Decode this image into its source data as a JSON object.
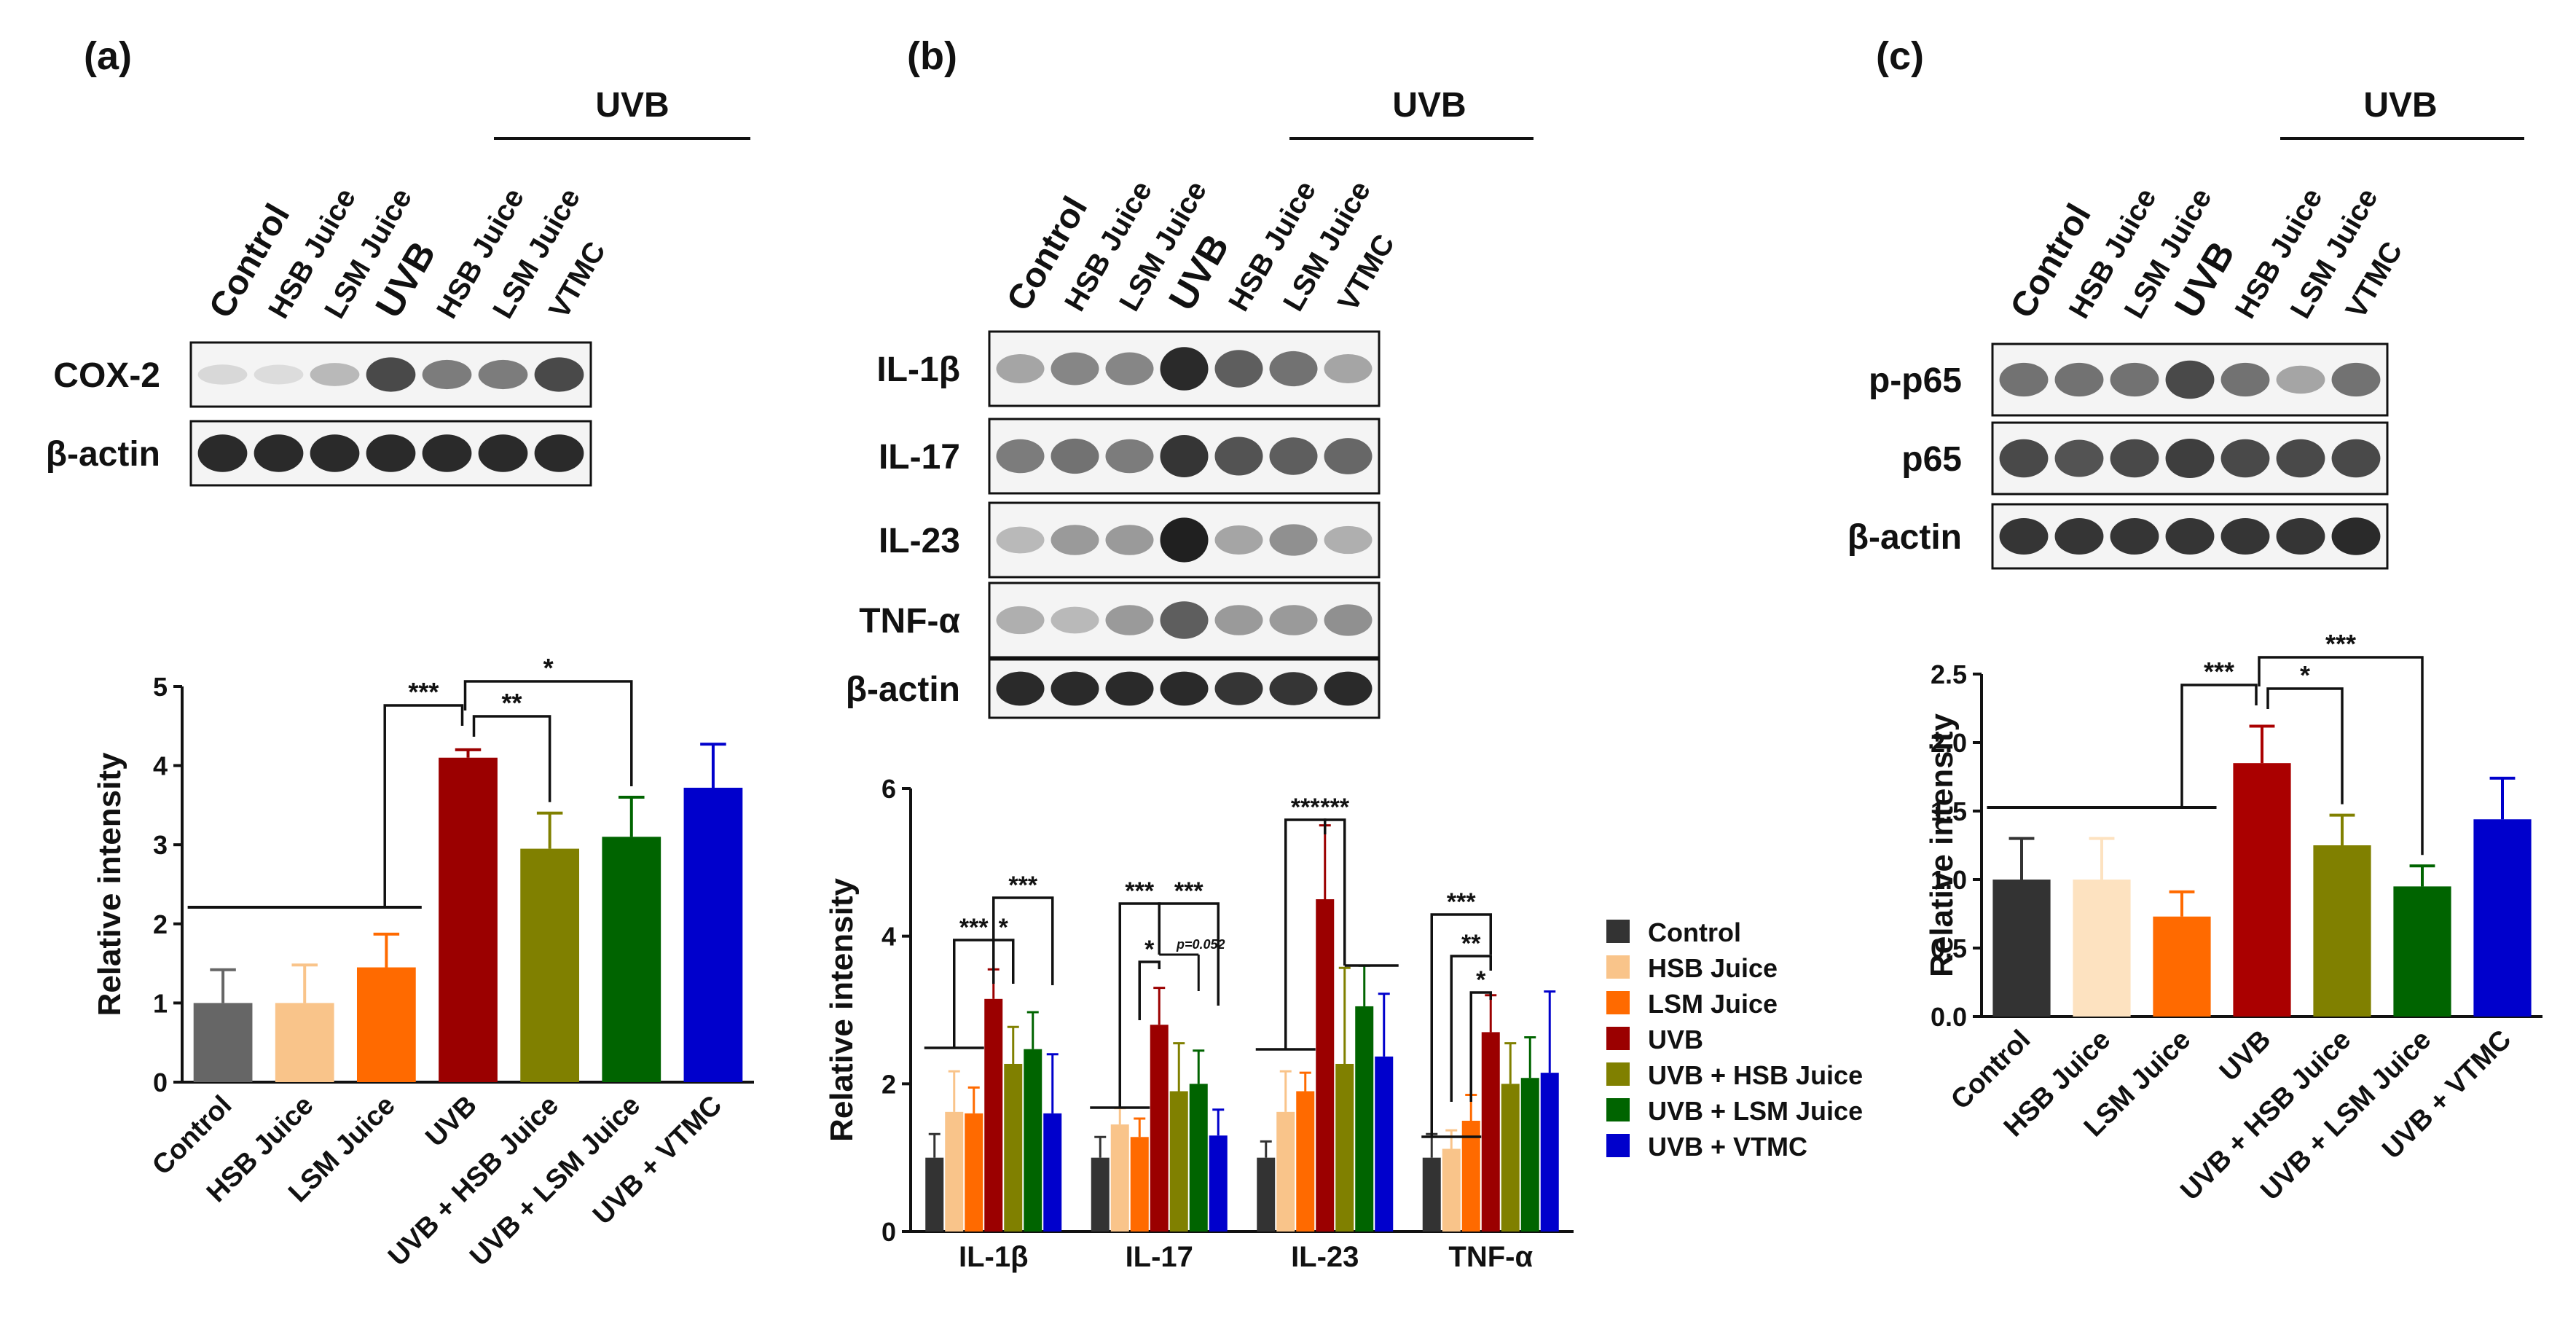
{
  "panels": [
    {
      "id": "a",
      "label": "(a)",
      "uvb_label": "UVB",
      "lanes": [
        "Control",
        "HSB Juice",
        "LSM Juice",
        "UVB",
        "HSB Juice",
        "LSM Juice",
        "VTMC"
      ],
      "blots": [
        {
          "name": "COX-2",
          "intensity": [
            0.1,
            0.08,
            0.25,
            0.8,
            0.55,
            0.55,
            0.8
          ]
        },
        {
          "name": "β-actin",
          "intensity": [
            0.95,
            0.95,
            0.95,
            0.95,
            0.95,
            0.95,
            0.95
          ]
        }
      ]
    },
    {
      "id": "b",
      "label": "(b)",
      "uvb_label": "UVB",
      "lanes": [
        "Control",
        "HSB Juice",
        "LSM Juice",
        "UVB",
        "HSB Juice",
        "LSM Juice",
        "VTMC"
      ],
      "blots": [
        {
          "name": "IL-1β",
          "intensity": [
            0.35,
            0.5,
            0.5,
            0.95,
            0.7,
            0.6,
            0.35
          ]
        },
        {
          "name": "IL-17",
          "intensity": [
            0.55,
            0.6,
            0.55,
            0.9,
            0.75,
            0.7,
            0.65
          ]
        },
        {
          "name": "IL-23",
          "intensity": [
            0.25,
            0.4,
            0.4,
            1.0,
            0.35,
            0.45,
            0.3
          ]
        },
        {
          "name": "TNF-α",
          "intensity": [
            0.3,
            0.25,
            0.4,
            0.7,
            0.4,
            0.4,
            0.45
          ]
        },
        {
          "name": "β-actin",
          "intensity": [
            0.95,
            0.95,
            0.95,
            0.95,
            0.9,
            0.9,
            0.95
          ]
        }
      ]
    },
    {
      "id": "c",
      "label": "(c)",
      "uvb_label": "UVB",
      "lanes": [
        "Control",
        "HSB Juice",
        "LSM Juice",
        "UVB",
        "HSB Juice",
        "LSM Juice",
        "VTMC"
      ],
      "blots": [
        {
          "name": "p-p65",
          "intensity": [
            0.6,
            0.6,
            0.6,
            0.8,
            0.6,
            0.35,
            0.6
          ]
        },
        {
          "name": "p65",
          "intensity": [
            0.8,
            0.75,
            0.8,
            0.85,
            0.8,
            0.8,
            0.8
          ]
        },
        {
          "name": "β-actin",
          "intensity": [
            0.9,
            0.9,
            0.9,
            0.9,
            0.9,
            0.9,
            0.95
          ]
        }
      ]
    }
  ],
  "chart_data": [
    {
      "id": "a",
      "type": "bar",
      "ylabel": "Relative intensity",
      "ylim": [
        0,
        5
      ],
      "yticks": [
        "0",
        "1",
        "2",
        "3",
        "4",
        "5"
      ],
      "categories": [
        "Control",
        "HSB Juice",
        "LSM Juice",
        "UVB",
        "UVB + HSB Juice",
        "UVB + LSM Juice",
        "UVB + VTMC"
      ],
      "values": [
        1.0,
        1.0,
        1.45,
        4.1,
        2.95,
        3.1,
        3.72
      ],
      "errors": [
        0.42,
        0.48,
        0.42,
        0.1,
        0.45,
        0.5,
        0.55
      ],
      "colors": [
        "#666666",
        "#F9C48A",
        "#FF6A00",
        "#9B0000",
        "#808000",
        "#006400",
        "#0000CC"
      ],
      "annotations": [
        {
          "from": 0,
          "to": 3,
          "text": "***",
          "group_end": 2
        },
        {
          "from": 3,
          "to": 4,
          "text": "**"
        },
        {
          "from": 3,
          "to": 5,
          "text": "*"
        }
      ]
    },
    {
      "id": "b",
      "type": "bar",
      "ylabel": "Relative intensity",
      "ylim": [
        0,
        6
      ],
      "yticks": [
        "0",
        "2",
        "4",
        "6"
      ],
      "categories": [
        "IL-1β",
        "IL-17",
        "IL-23",
        "TNF-α"
      ],
      "series": [
        {
          "name": "Control",
          "values": [
            1.0,
            1.0,
            1.0,
            1.0
          ],
          "errors": [
            0.32,
            0.28,
            0.22,
            0.32
          ]
        },
        {
          "name": "HSB Juice",
          "values": [
            1.62,
            1.45,
            1.62,
            1.12
          ],
          "errors": [
            0.55,
            0.22,
            0.55,
            0.25
          ]
        },
        {
          "name": "LSM Juice",
          "values": [
            1.6,
            1.28,
            1.9,
            1.5
          ],
          "errors": [
            0.35,
            0.25,
            0.25,
            0.35
          ]
        },
        {
          "name": "UVB",
          "values": [
            3.15,
            2.8,
            4.5,
            2.7
          ],
          "errors": [
            0.4,
            0.5,
            1.0,
            0.5
          ]
        },
        {
          "name": "UVB + HSB Juice",
          "values": [
            2.27,
            1.9,
            2.27,
            2.0
          ],
          "errors": [
            0.5,
            0.65,
            1.3,
            0.55
          ]
        },
        {
          "name": "UVB + LSM Juice",
          "values": [
            2.47,
            2.0,
            3.05,
            2.08
          ],
          "errors": [
            0.5,
            0.45,
            0.55,
            0.55
          ]
        },
        {
          "name": "UVB + VTMC",
          "values": [
            1.6,
            1.3,
            2.37,
            2.15
          ],
          "errors": [
            0.8,
            0.35,
            0.85,
            1.1
          ]
        }
      ],
      "colors": [
        "#333333",
        "#F9C48A",
        "#FF6A00",
        "#9B0000",
        "#808000",
        "#006400",
        "#0000CC"
      ],
      "annotations": [
        {
          "group": 0,
          "lines": [
            {
              "to": 4,
              "text": "***"
            },
            {
              "to": 5,
              "text": "*"
            },
            {
              "from": 3,
              "to": 6,
              "text": "***"
            }
          ]
        },
        {
          "group": 1,
          "lines": [
            {
              "to": 3,
              "text": "***"
            },
            {
              "from": 3,
              "to": 4,
              "text": "*"
            },
            {
              "from": 3,
              "to": 6,
              "text": "***"
            },
            {
              "from": 3,
              "to": 5,
              "text": "p=0.052"
            }
          ]
        },
        {
          "group": 2,
          "lines": [
            {
              "to": 3,
              "text": "***"
            },
            {
              "from": 3,
              "to": 4,
              "text": "***"
            }
          ]
        },
        {
          "group": 3,
          "lines": [
            {
              "to": 3,
              "text": "***"
            },
            {
              "to": 3,
              "text": "**"
            },
            {
              "to": 3,
              "text": "*"
            }
          ]
        }
      ],
      "legend": {
        "placement": "right",
        "entries": [
          "Control",
          "HSB Juice",
          "LSM Juice",
          "UVB",
          "UVB + HSB Juice",
          "UVB + LSM Juice",
          "UVB + VTMC"
        ]
      }
    },
    {
      "id": "c",
      "type": "bar",
      "ylabel": "Relative intensity",
      "ylim": [
        0,
        2.5
      ],
      "yticks": [
        "0.0",
        "0.5",
        "1.0",
        "1.5",
        "2.0",
        "2.5"
      ],
      "categories": [
        "Control",
        "HSB Juice",
        "LSM Juice",
        "UVB",
        "UVB + HSB Juice",
        "UVB + LSM Juice",
        "UVB + VTMC"
      ],
      "values": [
        1.0,
        1.0,
        0.73,
        1.85,
        1.25,
        0.95,
        1.44
      ],
      "errors": [
        0.3,
        0.3,
        0.18,
        0.27,
        0.22,
        0.15,
        0.3
      ],
      "colors": [
        "#333333",
        "#FDE2C0",
        "#FF6A00",
        "#AA0000",
        "#808000",
        "#006400",
        "#0000CC"
      ],
      "annotations": [
        {
          "from": 0,
          "to": 3,
          "text": "***",
          "group_end": 2
        },
        {
          "from": 3,
          "to": 4,
          "text": "*"
        },
        {
          "from": 3,
          "to": 5,
          "text": "***"
        }
      ]
    }
  ]
}
